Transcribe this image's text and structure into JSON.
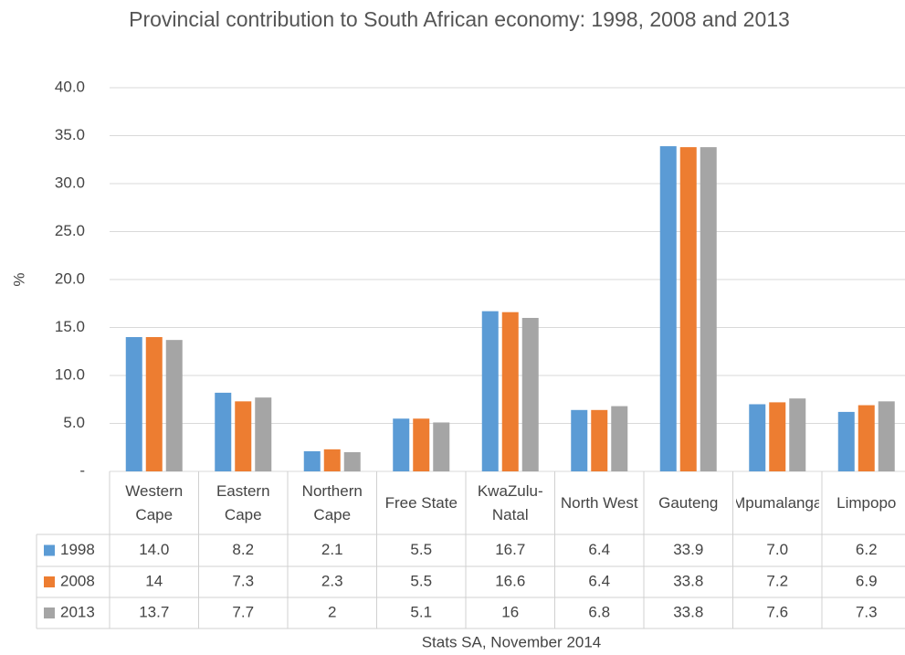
{
  "chart_data": {
    "type": "bar",
    "title": "Provincial contribution to South African economy: 1998, 2008 and 2013",
    "y_label": "%",
    "source": "Stats SA, November 2014",
    "categories": [
      "Western Cape",
      "Eastern Cape",
      "Northern Cape",
      "Free State",
      "KwaZulu-Natal",
      "North West",
      "Gauteng",
      "Mpumalanga",
      "Limpopo"
    ],
    "series": [
      {
        "name": "1998",
        "color": "#5b9bd5",
        "values": [
          14.0,
          8.2,
          2.1,
          5.5,
          16.7,
          6.4,
          33.9,
          7.0,
          6.2
        ],
        "value_labels": [
          "14.0",
          "8.2",
          "2.1",
          "5.5",
          "16.7",
          "6.4",
          "33.9",
          "7.0",
          "6.2"
        ]
      },
      {
        "name": "2008",
        "color": "#ed7d31",
        "values": [
          14,
          7.3,
          2.3,
          5.5,
          16.6,
          6.4,
          33.8,
          7.2,
          6.9
        ]
      },
      {
        "name": "2013",
        "color": "#a5a5a5",
        "values": [
          13.7,
          7.7,
          2,
          5.1,
          16,
          6.8,
          33.8,
          7.6,
          7.3
        ]
      }
    ],
    "ylim": [
      0,
      40
    ],
    "yticks": [
      {
        "value": 0,
        "label": "-"
      },
      {
        "value": 5,
        "label": "5.0"
      },
      {
        "value": 10,
        "label": "10.0"
      },
      {
        "value": 15,
        "label": "15.0"
      },
      {
        "value": 20,
        "label": "20.0"
      },
      {
        "value": 25,
        "label": "25.0"
      },
      {
        "value": 30,
        "label": "30.0"
      },
      {
        "value": 35,
        "label": "35.0"
      },
      {
        "value": 40,
        "label": "40.0"
      }
    ],
    "grid": true
  }
}
